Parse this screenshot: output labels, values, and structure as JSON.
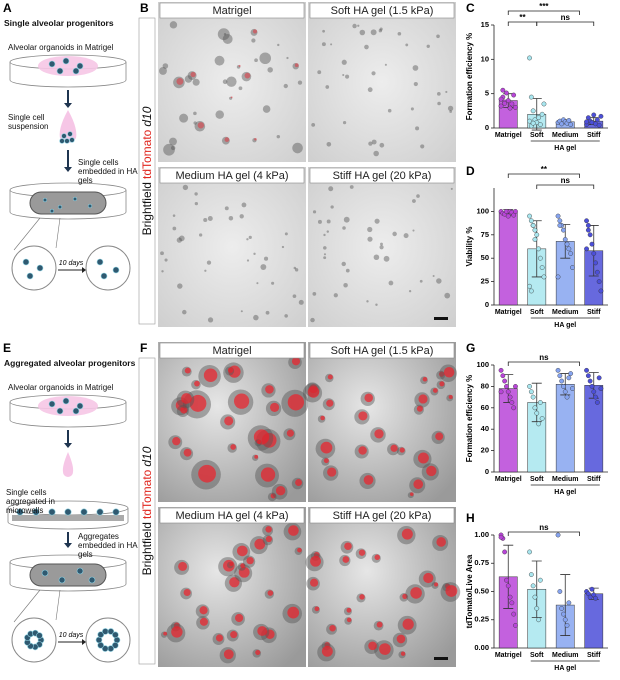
{
  "panels": [
    {
      "letter": "A",
      "title": "Single alveolar progenitors",
      "steps": [
        "Alveolar organoids in Matrigel",
        "Single cell suspension",
        "Single cells embedded in HA gels"
      ],
      "arrow_label": "10 days"
    },
    {
      "letter": "E",
      "title": "Aggregated alveolar progenitors",
      "steps": [
        "Alveolar organoids in Matrigel",
        "Single cells aggregated in microwells",
        "Aggregates embedded in HA gels"
      ],
      "arrow_label": "10 days"
    }
  ],
  "images": [
    {
      "letter": "B",
      "side_label": [
        "Brightfield",
        "tdTomato",
        "d10"
      ],
      "tiles": [
        "Matrigel",
        "Soft HA gel (1.5 kPa)",
        "Medium HA gel (4 kPa)",
        "Stiff HA gel (20 kPa)"
      ]
    },
    {
      "letter": "F",
      "side_label": [
        "Brightfield",
        "tdTomato",
        "d10"
      ],
      "tiles": [
        "Matrigel",
        "Soft HA gel (1.5 kPa)",
        "Medium HA gel (4 kPa)",
        "Stiff HA gel (20 kPa)"
      ]
    }
  ],
  "chart_data": [
    {
      "letter": "C",
      "type": "bar",
      "y_label": "Formation efficiency %",
      "categories": [
        "Matrigel",
        "Soft",
        "Medium",
        "Stiff"
      ],
      "group_label": "HA gel",
      "colors": [
        "#b845d8",
        "#a8e6ef",
        "#86a4f0",
        "#4c4fd8"
      ],
      "values": [
        4.0,
        2.0,
        0.9,
        1.0
      ],
      "errors": [
        1.0,
        2.3,
        0.3,
        0.5
      ],
      "points": [
        [
          3.2,
          4.5,
          3.8,
          5.1,
          4.0,
          2.9,
          3.5,
          4.8,
          3.0,
          4.2,
          5.5,
          3.6
        ],
        [
          10.2,
          4.5,
          2.5,
          1.2,
          0.8,
          1.5,
          0.5,
          2.0,
          3.5,
          1.0,
          0.3,
          0.7
        ],
        [
          0.8,
          1.0,
          0.6,
          1.2,
          0.9,
          0.7,
          1.1,
          0.5
        ],
        [
          0.5,
          1.5,
          1.0,
          0.8,
          1.9,
          0.6,
          1.2,
          0.4,
          1.7,
          0.9
        ]
      ],
      "annotations": [
        "**",
        "***",
        "ns"
      ],
      "ylim": [
        0,
        15
      ],
      "yticks": [
        0,
        5,
        10,
        15
      ]
    },
    {
      "letter": "D",
      "type": "bar",
      "y_label": "Viability %",
      "categories": [
        "Matrigel",
        "Soft",
        "Medium",
        "Stiff"
      ],
      "group_label": "HA gel",
      "colors": [
        "#b845d8",
        "#a8e6ef",
        "#86a4f0",
        "#4c4fd8"
      ],
      "values": [
        99,
        60,
        68,
        58
      ],
      "errors": [
        3,
        30,
        18,
        27
      ],
      "points": [
        [
          100,
          98,
          97,
          100,
          95,
          100,
          99,
          96,
          100
        ],
        [
          95,
          90,
          85,
          80,
          75,
          60,
          50,
          40,
          30,
          20,
          15,
          85,
          70
        ],
        [
          95,
          90,
          85,
          80,
          70,
          65,
          60,
          55,
          40,
          30,
          85
        ],
        [
          90,
          85,
          75,
          65,
          55,
          45,
          35,
          25,
          15,
          60,
          80
        ]
      ],
      "annotations": [
        "**",
        "ns"
      ],
      "ylim": [
        0,
        125
      ],
      "yticks": [
        0,
        25,
        50,
        75,
        100
      ]
    },
    {
      "letter": "G",
      "type": "bar",
      "y_label": "Formation efficiency %",
      "categories": [
        "Matrigel",
        "Soft",
        "Medium",
        "Stiff"
      ],
      "group_label": "HA gel",
      "colors": [
        "#b845d8",
        "#a8e6ef",
        "#86a4f0",
        "#4c4fd8"
      ],
      "values": [
        78,
        65,
        82,
        81
      ],
      "errors": [
        13,
        18,
        10,
        12
      ],
      "points": [
        [
          95,
          90,
          85,
          80,
          75,
          70,
          65,
          60,
          80,
          75
        ],
        [
          80,
          75,
          70,
          60,
          55,
          45,
          65,
          50
        ],
        [
          95,
          90,
          85,
          80,
          75,
          70,
          88,
          92,
          78
        ],
        [
          95,
          90,
          85,
          80,
          75,
          70,
          65,
          88,
          78
        ]
      ],
      "annotations": [
        "ns"
      ],
      "ylim": [
        0,
        100
      ],
      "yticks": [
        0,
        20,
        40,
        60,
        80,
        100
      ]
    },
    {
      "letter": "H",
      "type": "bar",
      "y_label": "tdTomato/Live Area",
      "categories": [
        "Matrigel",
        "Soft",
        "Medium",
        "Stiff"
      ],
      "group_label": "HA gel",
      "colors": [
        "#b845d8",
        "#a8e6ef",
        "#86a4f0",
        "#4c4fd8"
      ],
      "values": [
        0.63,
        0.52,
        0.38,
        0.48
      ],
      "errors": [
        0.28,
        0.25,
        0.27,
        0.05
      ],
      "points": [
        [
          1.0,
          0.97,
          0.85,
          0.6,
          0.55,
          0.45,
          0.4,
          0.3,
          0.2,
          0.98
        ],
        [
          0.85,
          0.65,
          0.55,
          0.45,
          0.35,
          0.25,
          0.6
        ],
        [
          1.0,
          0.5,
          0.35,
          0.3,
          0.25,
          0.2,
          0.4
        ],
        [
          0.5,
          0.48,
          0.45,
          0.52,
          0.47,
          0.44
        ]
      ],
      "annotations": [
        "ns"
      ],
      "ylim": [
        0,
        1.0
      ],
      "yticks": [
        {
          "value": 0,
          "label": "0.00"
        },
        {
          "value": 0.25,
          "label": "0.25"
        },
        {
          "value": 0.5,
          "label": "0.50"
        },
        {
          "value": 0.75,
          "label": "0.75"
        },
        {
          "value": 1.0,
          "label": "1.00"
        }
      ]
    }
  ]
}
